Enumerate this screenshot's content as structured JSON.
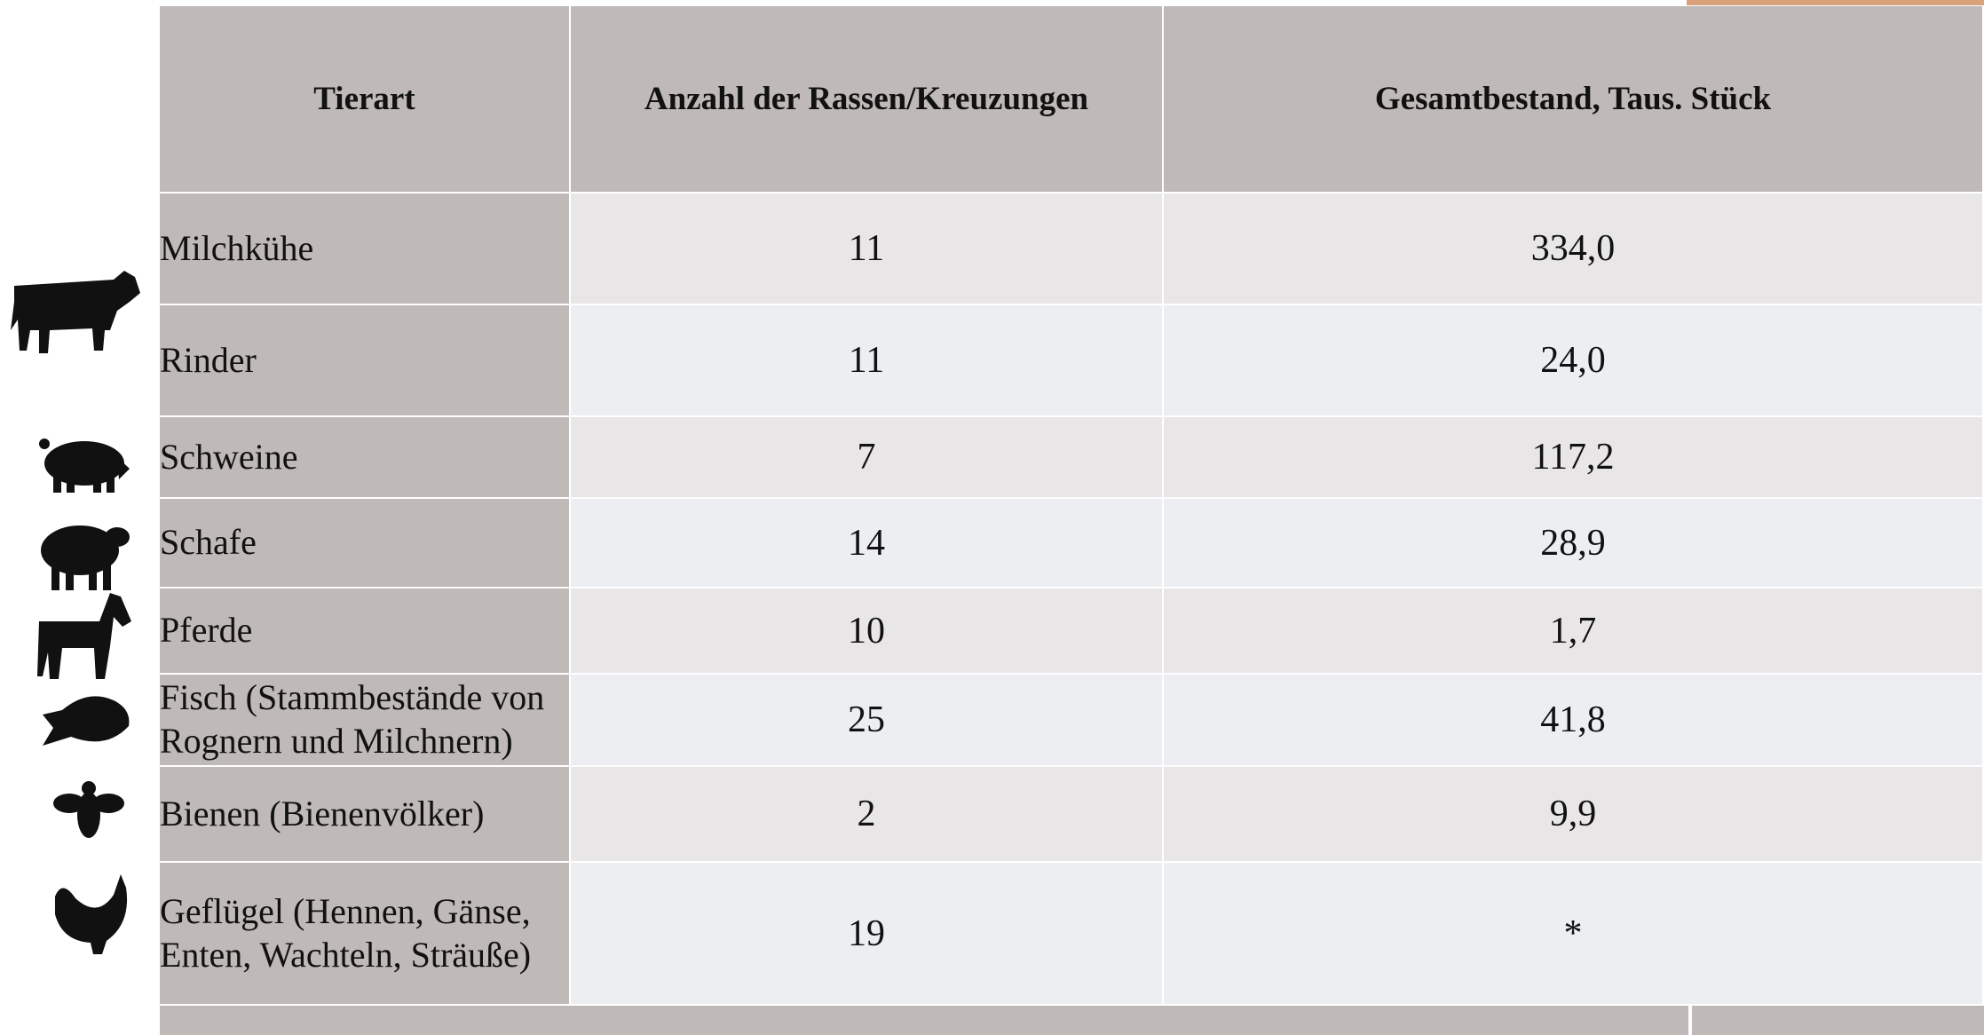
{
  "table": {
    "header": [
      "Tierart",
      "Anzahl der Rassen/Kreuzungen",
      "Gesamtbestand, Taus. Stück"
    ],
    "rows": [
      [
        "Milchkühe",
        "11",
        "334,0"
      ],
      [
        "Rinder",
        "11",
        "24,0"
      ],
      [
        "Schweine",
        "7",
        "117,2"
      ],
      [
        "Schafe",
        "14",
        "28,9"
      ],
      [
        "Pferde",
        "10",
        "1,7"
      ],
      [
        "Fisch (Stammbestände von Rognern und Milchnern)",
        "25",
        "41,8"
      ],
      [
        "Bienen (Bienenvölker)",
        "2",
        "9,9"
      ],
      [
        "Geflügel (Hennen, Gänse, Enten, Wachteln, Sträuße)",
        "19",
        "*"
      ]
    ]
  }
}
